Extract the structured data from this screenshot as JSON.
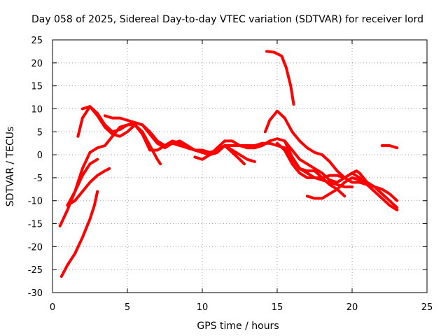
{
  "chart_data": {
    "type": "line",
    "title": "Day 058 of 2025, Sidereal Day-to-day VTEC variation (SDTVAR) for receiver lord",
    "xlabel": "GPS time / hours",
    "ylabel": "SDTVAR / TECUs",
    "xlim": [
      0,
      25
    ],
    "ylim": [
      -30,
      25
    ],
    "x_ticks": [
      0,
      5,
      10,
      15,
      20,
      25
    ],
    "y_ticks": [
      -30,
      -25,
      -20,
      -15,
      -10,
      -5,
      0,
      5,
      10,
      15,
      20,
      25
    ],
    "x_tick_labels": [
      "0",
      "5",
      "10",
      "15",
      "20",
      "25"
    ],
    "y_tick_labels": [
      "-30",
      "-25",
      "-20",
      "-15",
      "-10",
      "-5",
      "0",
      "5",
      "10",
      "15",
      "20",
      "25"
    ],
    "grid": true,
    "legend": "none",
    "color": "#ff0000",
    "series": [
      {
        "name": "s1",
        "points": [
          [
            0.5,
            -15.5
          ],
          [
            1.0,
            -12
          ],
          [
            1.5,
            -8
          ],
          [
            2.0,
            -3
          ],
          [
            2.5,
            0.5
          ],
          [
            3.0,
            1.5
          ],
          [
            3.5,
            2
          ],
          [
            4.0,
            4
          ],
          [
            4.5,
            6
          ],
          [
            5.0,
            6.5
          ],
          [
            5.5,
            6.5
          ],
          [
            6.0,
            4.5
          ],
          [
            6.5,
            1
          ],
          [
            7.0,
            1
          ],
          [
            7.5,
            2
          ],
          [
            8.0,
            3
          ],
          [
            8.5,
            2.5
          ],
          [
            9.0,
            1.5
          ],
          [
            9.5,
            1
          ],
          [
            10.0,
            0.5
          ],
          [
            10.5,
            0
          ],
          [
            11.0,
            0.5
          ],
          [
            11.5,
            2
          ],
          [
            12.0,
            2
          ],
          [
            12.5,
            2
          ],
          [
            13.0,
            2
          ],
          [
            13.5,
            2
          ],
          [
            14.0,
            2.5
          ],
          [
            14.5,
            2.5
          ],
          [
            15.0,
            2
          ],
          [
            15.5,
            1.5
          ],
          [
            16.0,
            -1
          ],
          [
            16.5,
            -3
          ],
          [
            17.0,
            -4
          ],
          [
            17.5,
            -5
          ],
          [
            18.0,
            -5.5
          ],
          [
            18.5,
            -6
          ],
          [
            19.0,
            -6.5
          ],
          [
            19.5,
            -7
          ],
          [
            20.0,
            -7
          ]
        ]
      },
      {
        "name": "s2",
        "points": [
          [
            0.6,
            -26.5
          ],
          [
            1.0,
            -24
          ],
          [
            1.5,
            -21.5
          ],
          [
            2.0,
            -18
          ],
          [
            2.5,
            -14
          ],
          [
            2.8,
            -11
          ],
          [
            3.0,
            -8
          ]
        ]
      },
      {
        "name": "s3",
        "points": [
          [
            1.0,
            -11
          ],
          [
            1.5,
            -10
          ],
          [
            2.0,
            -8
          ],
          [
            2.5,
            -6
          ],
          [
            3.0,
            -4.5
          ],
          [
            3.5,
            -3.5
          ],
          [
            3.8,
            -3
          ]
        ]
      },
      {
        "name": "s4",
        "points": [
          [
            1.0,
            -11
          ],
          [
            1.5,
            -8
          ],
          [
            2.0,
            -4.5
          ],
          [
            2.5,
            -2
          ],
          [
            3.0,
            -1
          ]
        ]
      },
      {
        "name": "s5",
        "points": [
          [
            1.7,
            4
          ],
          [
            2.0,
            8
          ],
          [
            2.5,
            10.5
          ],
          [
            3.0,
            9
          ],
          [
            3.5,
            6.5
          ],
          [
            4.0,
            5
          ],
          [
            4.5,
            5.5
          ],
          [
            5.0,
            6.5
          ],
          [
            5.5,
            7
          ],
          [
            6.0,
            6.5
          ],
          [
            6.5,
            4.5
          ],
          [
            7.0,
            2.5
          ],
          [
            7.5,
            1.5
          ],
          [
            8.0,
            2.5
          ],
          [
            8.5,
            3
          ],
          [
            9.0,
            2
          ],
          [
            9.5,
            1
          ],
          [
            10.0,
            0.5
          ]
        ]
      },
      {
        "name": "s6",
        "points": [
          [
            2.0,
            10
          ],
          [
            2.5,
            10.5
          ],
          [
            3.0,
            8.5
          ],
          [
            3.5,
            6
          ],
          [
            4.0,
            4.5
          ],
          [
            4.5,
            4
          ],
          [
            5.0,
            5
          ],
          [
            5.5,
            6.5
          ],
          [
            6.0,
            5
          ],
          [
            6.5,
            2
          ],
          [
            7.0,
            -1
          ],
          [
            7.2,
            -2
          ]
        ]
      },
      {
        "name": "s7",
        "points": [
          [
            3.5,
            8.5
          ],
          [
            4.0,
            8
          ],
          [
            4.5,
            8
          ],
          [
            5.0,
            7.5
          ],
          [
            5.5,
            7
          ],
          [
            6.0,
            6.5
          ],
          [
            6.5,
            5
          ],
          [
            7.0,
            3
          ],
          [
            7.5,
            2
          ],
          [
            8.0,
            2.5
          ],
          [
            8.5,
            2
          ],
          [
            9.0,
            1.5
          ],
          [
            9.5,
            1
          ],
          [
            10.0,
            1
          ],
          [
            10.5,
            0.5
          ],
          [
            11.0,
            1
          ],
          [
            11.5,
            2
          ],
          [
            12.0,
            1
          ],
          [
            12.5,
            0
          ],
          [
            13.0,
            -1
          ],
          [
            13.5,
            -1.5
          ]
        ]
      },
      {
        "name": "s8",
        "points": [
          [
            9.5,
            -0.5
          ],
          [
            10.0,
            -1
          ],
          [
            10.5,
            0
          ],
          [
            11.0,
            1.5
          ],
          [
            11.5,
            3
          ],
          [
            12.0,
            3
          ],
          [
            12.5,
            2
          ],
          [
            13.0,
            1.5
          ],
          [
            13.5,
            1.5
          ],
          [
            14.0,
            2
          ],
          [
            14.5,
            3
          ],
          [
            15.0,
            3.5
          ],
          [
            15.5,
            3
          ],
          [
            16.0,
            -0.5
          ],
          [
            16.5,
            -3
          ],
          [
            17.0,
            -3.5
          ],
          [
            17.5,
            -3.5
          ],
          [
            18.0,
            -5
          ],
          [
            18.5,
            -6.5
          ],
          [
            19.0,
            -7.5
          ],
          [
            19.5,
            -9
          ]
        ]
      },
      {
        "name": "s9",
        "points": [
          [
            10.0,
            -1
          ],
          [
            10.5,
            0
          ],
          [
            11.0,
            1
          ],
          [
            11.5,
            2
          ],
          [
            12.0,
            0.5
          ],
          [
            12.5,
            -1
          ],
          [
            12.8,
            -2
          ]
        ]
      },
      {
        "name": "s10",
        "points": [
          [
            14.2,
            5
          ],
          [
            14.5,
            7.5
          ],
          [
            15.0,
            9.5
          ],
          [
            15.5,
            8
          ],
          [
            16.0,
            5
          ],
          [
            16.5,
            3
          ],
          [
            17.0,
            1.5
          ],
          [
            17.5,
            0.5
          ],
          [
            18.0,
            0
          ],
          [
            18.5,
            -1.5
          ],
          [
            19.0,
            -3.5
          ],
          [
            19.5,
            -5
          ],
          [
            20.0,
            -6
          ],
          [
            20.5,
            -6
          ],
          [
            21.0,
            -6.5
          ],
          [
            21.5,
            -7
          ],
          [
            22.0,
            -7.5
          ],
          [
            22.5,
            -8.5
          ],
          [
            23.0,
            -10
          ]
        ]
      },
      {
        "name": "s11",
        "points": [
          [
            14.3,
            22.5
          ],
          [
            14.8,
            22.3
          ],
          [
            15.3,
            21.5
          ],
          [
            15.6,
            19
          ],
          [
            15.9,
            15
          ],
          [
            16.1,
            11
          ]
        ]
      },
      {
        "name": "s12",
        "points": [
          [
            15.0,
            2.5
          ],
          [
            15.5,
            1
          ],
          [
            16.0,
            -2
          ],
          [
            16.5,
            -4
          ],
          [
            17.0,
            -5
          ],
          [
            17.5,
            -5
          ],
          [
            18.0,
            -5
          ],
          [
            18.5,
            -4.5
          ],
          [
            19.0,
            -4.5
          ],
          [
            19.5,
            -5
          ],
          [
            20.0,
            -4
          ],
          [
            20.3,
            -3.5
          ],
          [
            20.5,
            -4
          ],
          [
            21.0,
            -6
          ],
          [
            21.5,
            -7
          ],
          [
            22.0,
            -8.5
          ],
          [
            22.5,
            -10
          ],
          [
            23.0,
            -11.5
          ]
        ]
      },
      {
        "name": "s13",
        "points": [
          [
            15.5,
            3
          ],
          [
            16.0,
            1
          ],
          [
            16.5,
            -1
          ],
          [
            17.0,
            -2
          ],
          [
            17.5,
            -3
          ],
          [
            18.0,
            -4
          ],
          [
            18.5,
            -5.5
          ],
          [
            19.0,
            -6
          ],
          [
            19.5,
            -5
          ],
          [
            20.0,
            -4
          ],
          [
            20.5,
            -5
          ],
          [
            21.0,
            -6.5
          ],
          [
            21.5,
            -8
          ],
          [
            22.0,
            -9.5
          ],
          [
            22.5,
            -11
          ],
          [
            23.0,
            -12
          ]
        ]
      },
      {
        "name": "s14",
        "points": [
          [
            17.0,
            -9
          ],
          [
            17.5,
            -9.5
          ],
          [
            18.0,
            -9.5
          ],
          [
            18.5,
            -8.5
          ],
          [
            19.0,
            -7.5
          ],
          [
            19.5,
            -6
          ],
          [
            20.0,
            -5
          ],
          [
            20.5,
            -5.5
          ],
          [
            21.0,
            -6.5
          ]
        ]
      },
      {
        "name": "s15",
        "points": [
          [
            22.0,
            2
          ],
          [
            22.5,
            2
          ],
          [
            23.0,
            1.5
          ]
        ]
      }
    ]
  }
}
